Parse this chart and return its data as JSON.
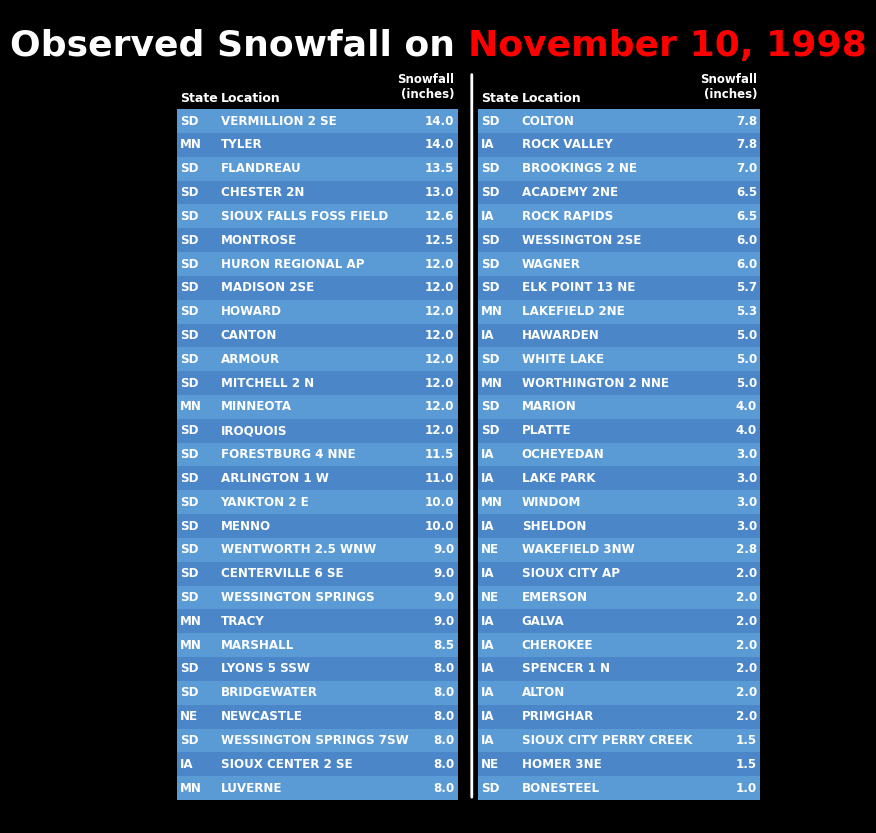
{
  "title_black": "Observed Snowfall on ",
  "title_red": "November 10, 1998",
  "bg_color": "#000000",
  "header_text_color": "#ffffff",
  "row_text_color": "#ffffff",
  "row_colors": [
    "#5b9bd5",
    "#4a86c8"
  ],
  "left_table": {
    "rows": [
      [
        "SD",
        "VERMILLION 2 SE",
        "14.0"
      ],
      [
        "MN",
        "TYLER",
        "14.0"
      ],
      [
        "SD",
        "FLANDREAU",
        "13.5"
      ],
      [
        "SD",
        "CHESTER 2N",
        "13.0"
      ],
      [
        "SD",
        "SIOUX FALLS FOSS FIELD",
        "12.6"
      ],
      [
        "SD",
        "MONTROSE",
        "12.5"
      ],
      [
        "SD",
        "HURON REGIONAL AP",
        "12.0"
      ],
      [
        "SD",
        "MADISON 2SE",
        "12.0"
      ],
      [
        "SD",
        "HOWARD",
        "12.0"
      ],
      [
        "SD",
        "CANTON",
        "12.0"
      ],
      [
        "SD",
        "ARMOUR",
        "12.0"
      ],
      [
        "SD",
        "MITCHELL 2 N",
        "12.0"
      ],
      [
        "MN",
        "MINNEOTA",
        "12.0"
      ],
      [
        "SD",
        "IROQUOIS",
        "12.0"
      ],
      [
        "SD",
        "FORESTBURG 4 NNE",
        "11.5"
      ],
      [
        "SD",
        "ARLINGTON 1 W",
        "11.0"
      ],
      [
        "SD",
        "YANKTON 2 E",
        "10.0"
      ],
      [
        "SD",
        "MENNO",
        "10.0"
      ],
      [
        "SD",
        "WENTWORTH 2.5 WNW",
        "9.0"
      ],
      [
        "SD",
        "CENTERVILLE 6 SE",
        "9.0"
      ],
      [
        "SD",
        "WESSINGTON SPRINGS",
        "9.0"
      ],
      [
        "MN",
        "TRACY",
        "9.0"
      ],
      [
        "MN",
        "MARSHALL",
        "8.5"
      ],
      [
        "SD",
        "LYONS 5 SSW",
        "8.0"
      ],
      [
        "SD",
        "BRIDGEWATER",
        "8.0"
      ],
      [
        "NE",
        "NEWCASTLE",
        "8.0"
      ],
      [
        "SD",
        "WESSINGTON SPRINGS 7SW",
        "8.0"
      ],
      [
        "IA",
        "SIOUX CENTER 2 SE",
        "8.0"
      ],
      [
        "MN",
        "LUVERNE",
        "8.0"
      ]
    ]
  },
  "right_table": {
    "rows": [
      [
        "SD",
        "COLTON",
        "7.8"
      ],
      [
        "IA",
        "ROCK VALLEY",
        "7.8"
      ],
      [
        "SD",
        "BROOKINGS 2 NE",
        "7.0"
      ],
      [
        "SD",
        "ACADEMY 2NE",
        "6.5"
      ],
      [
        "IA",
        "ROCK RAPIDS",
        "6.5"
      ],
      [
        "SD",
        "WESSINGTON 2SE",
        "6.0"
      ],
      [
        "SD",
        "WAGNER",
        "6.0"
      ],
      [
        "SD",
        "ELK POINT 13 NE",
        "5.7"
      ],
      [
        "MN",
        "LAKEFIELD 2NE",
        "5.3"
      ],
      [
        "IA",
        "HAWARDEN",
        "5.0"
      ],
      [
        "SD",
        "WHITE LAKE",
        "5.0"
      ],
      [
        "MN",
        "WORTHINGTON 2 NNE",
        "5.0"
      ],
      [
        "SD",
        "MARION",
        "4.0"
      ],
      [
        "SD",
        "PLATTE",
        "4.0"
      ],
      [
        "IA",
        "OCHEYEDAN",
        "3.0"
      ],
      [
        "IA",
        "LAKE PARK",
        "3.0"
      ],
      [
        "MN",
        "WINDOM",
        "3.0"
      ],
      [
        "IA",
        "SHELDON",
        "3.0"
      ],
      [
        "NE",
        "WAKEFIELD 3NW",
        "2.8"
      ],
      [
        "IA",
        "SIOUX CITY AP",
        "2.0"
      ],
      [
        "NE",
        "EMERSON",
        "2.0"
      ],
      [
        "IA",
        "GALVA",
        "2.0"
      ],
      [
        "IA",
        "CHEROKEE",
        "2.0"
      ],
      [
        "IA",
        "SPENCER 1 N",
        "2.0"
      ],
      [
        "IA",
        "ALTON",
        "2.0"
      ],
      [
        "IA",
        "PRIMGHAR",
        "2.0"
      ],
      [
        "IA",
        "SIOUX CITY PERRY CREEK",
        "1.5"
      ],
      [
        "NE",
        "HOMER 3NE",
        "1.5"
      ],
      [
        "SD",
        "BONESTEEL",
        "1.0"
      ]
    ]
  }
}
